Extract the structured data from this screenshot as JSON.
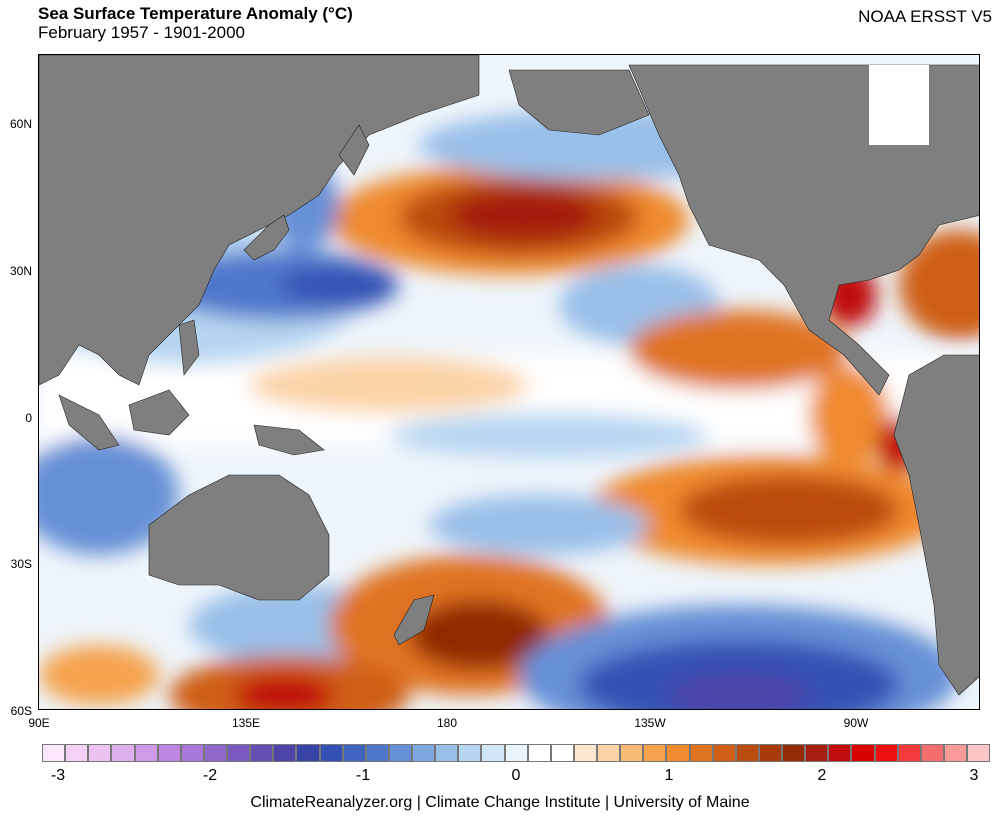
{
  "header": {
    "title": "Sea Surface Temperature Anomaly (°C)",
    "subtitle": "February 1957 - 1901-2000",
    "dataset": "NOAA ERSST V5"
  },
  "axes": {
    "lat_labels": [
      "60N",
      "30N",
      "0",
      "30S",
      "60S"
    ],
    "lon_labels": [
      "90E",
      "135E",
      "180",
      "135W",
      "90W"
    ]
  },
  "colorbar": {
    "ticks": [
      "-3",
      "-2",
      "-1",
      "0",
      "1",
      "2",
      "3"
    ],
    "colors": [
      "#fbe6fb",
      "#f4d2f6",
      "#ecc2f1",
      "#dfb0ee",
      "#cf9ae9",
      "#bd86e3",
      "#a878d8",
      "#9068cc",
      "#7a5abf",
      "#6550b3",
      "#4d44a8",
      "#3a44a6",
      "#3551b3",
      "#3f64c0",
      "#4f78cb",
      "#6690d6",
      "#7ea8e0",
      "#99bfe9",
      "#b6d5f1",
      "#d1e6f7",
      "#eaf4fb",
      "#ffffff",
      "#ffffff",
      "#fde7cf",
      "#fbd3a6",
      "#f8bb75",
      "#f5a34e",
      "#ef8a2f",
      "#e07321",
      "#cf5f17",
      "#bb4c10",
      "#a63c0a",
      "#922c06",
      "#a51e0f",
      "#c00c0c",
      "#d80000",
      "#ee1010",
      "#f23a3a",
      "#f66d6d",
      "#f99a9a",
      "#fcc6c6"
    ]
  },
  "footer": {
    "credit": "ClimateReanalyzer.org | Climate Change Institute | University of Maine"
  }
}
